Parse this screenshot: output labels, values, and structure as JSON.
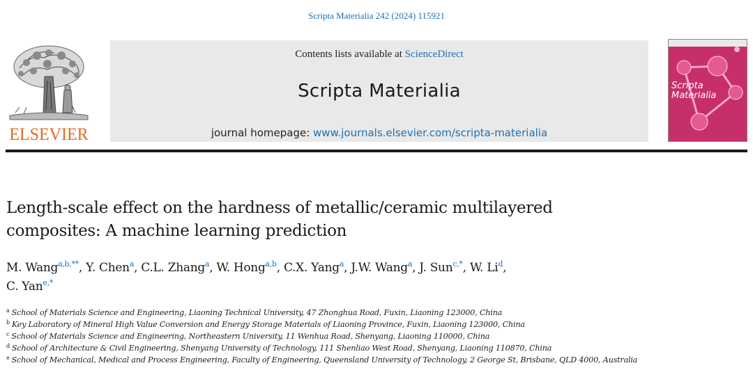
{
  "header": {
    "citation": "Scripta Materialia 242 (2024) 115921",
    "publisher": "ELSEVIER",
    "contents_prefix": "Contents lists available at ",
    "contents_link": "ScienceDirect",
    "journal_title": "Scripta Materialia",
    "homepage_prefix": "journal homepage: ",
    "homepage_url": "www.journals.elsevier.com/scripta-materialia",
    "cover_title_line1": "Scripta",
    "cover_title_line2": "Materialia"
  },
  "article": {
    "title_line1": "Length-scale effect on the hardness of metallic/ceramic multilayered",
    "title_line2": "composites: A machine learning prediction"
  },
  "authors": [
    {
      "name": "M. Wang",
      "sup": "a,b,**",
      "sep": ", "
    },
    {
      "name": "Y. Chen",
      "sup": "a",
      "sep": ", "
    },
    {
      "name": "C.L. Zhang",
      "sup": "a",
      "sep": ", "
    },
    {
      "name": "W. Hong",
      "sup": "a,b",
      "sep": ", "
    },
    {
      "name": "C.X. Yang",
      "sup": "a",
      "sep": ", "
    },
    {
      "name": "J.W. Wang",
      "sup": "a",
      "sep": ", "
    },
    {
      "name": "J. Sun",
      "sup": "c,*",
      "sep": ", "
    },
    {
      "name": "W. Li",
      "sup": "d",
      "sep": ","
    },
    {
      "name": "C. Yan",
      "sup": "e,*",
      "sep": ""
    }
  ],
  "affiliations": [
    {
      "key": "a",
      "text": "School of Materials Science and Engineering, Liaoning Technical University, 47 Zhonghua Road, Fuxin, Liaoning 123000, China"
    },
    {
      "key": "b",
      "text": "Key Laboratory of Mineral High Value Conversion and Energy Storage Materials of Liaoning Province, Fuxin, Liaoning 123000, China"
    },
    {
      "key": "c",
      "text": "School of Materials Science and Engineering, Northeastern University, 11 Wenhua Road, Shenyang, Liaoning 110000, China"
    },
    {
      "key": "d",
      "text": "School of Architecture & Civil Engineering, Shenyang University of Technology, 111 Shenliao West Road, Shenyang, Liaoning 110870, China"
    },
    {
      "key": "e",
      "text": "School of Mechanical, Medical and Process Engineering, Faculty of Engineering, Queensland University of Technology, 2 George St, Brisbane, QLD 4000, Australia"
    }
  ],
  "colors": {
    "link": "#1f6fb2",
    "elsevier_orange": "#e26b1f",
    "cover_magenta": "#c72f6b",
    "panel_grey": "#e9e9e9"
  },
  "icons": {
    "publisher_logo": "elsevier-tree-icon",
    "journal_cover": "journal-cover-image"
  }
}
